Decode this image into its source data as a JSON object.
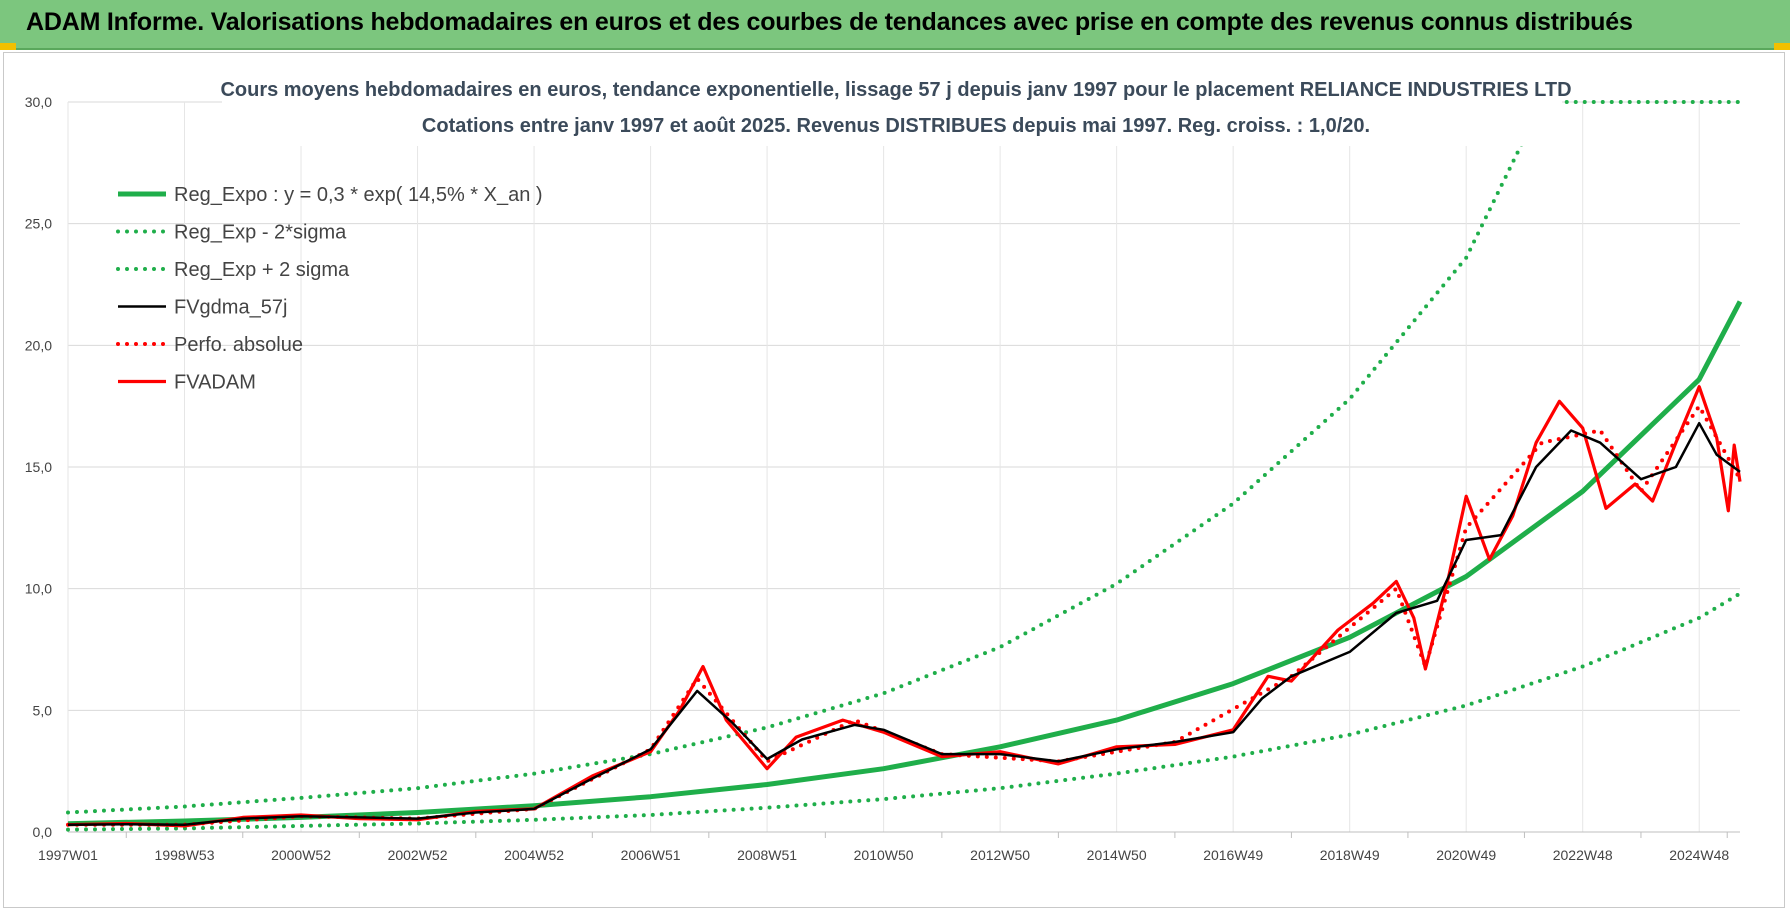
{
  "header": {
    "title": "ADAM Informe. Valorisations hebdomadaires en euros et des courbes de tendances avec prise en compte des revenus connus distribués"
  },
  "colors": {
    "banner": "#7cc67e",
    "trend": "#1fae4a",
    "price": "#ff0000",
    "smooth": "#000000",
    "grid": "#d9d9d9"
  },
  "chart_data": {
    "type": "line",
    "title_line1": "Cours moyens hebdomadaires en euros, tendance exponentielle, lissage 57 j depuis janv 1997 pour le placement RELIANCE INDUSTRIES LTD",
    "title_line2": "Cotations entre janv 1997 et août 2025. Revenus DISTRIBUES depuis mai 1997. Reg. croiss. : 1,0/20.",
    "ylim": [
      0,
      30
    ],
    "xlim": [
      1997.0,
      2025.7
    ],
    "grid": "horizontal",
    "legend_position": "top-left",
    "y_ticks": [
      "0,0",
      "5,0",
      "10,0",
      "15,0",
      "20,0",
      "25,0",
      "30,0"
    ],
    "x_ticks": [
      {
        "label": "1997W01",
        "x": 1997.0
      },
      {
        "label": "1998W53",
        "x": 1999.0
      },
      {
        "label": "2000W52",
        "x": 2001.0
      },
      {
        "label": "2002W52",
        "x": 2003.0
      },
      {
        "label": "2004W52",
        "x": 2005.0
      },
      {
        "label": "2006W51",
        "x": 2007.0
      },
      {
        "label": "2008W51",
        "x": 2009.0
      },
      {
        "label": "2010W50",
        "x": 2011.0
      },
      {
        "label": "2012W50",
        "x": 2013.0
      },
      {
        "label": "2014W50",
        "x": 2015.0
      },
      {
        "label": "2016W49",
        "x": 2017.0
      },
      {
        "label": "2018W49",
        "x": 2019.0
      },
      {
        "label": "2020W49",
        "x": 2021.0
      },
      {
        "label": "2022W48",
        "x": 2023.0
      },
      {
        "label": "2024W48",
        "x": 2025.0
      }
    ],
    "series": [
      {
        "name": "Reg_Expo : y = 0,3 * exp( 14,5% *  X_an )",
        "style": "solid-thick",
        "color": "#1fae4a",
        "points": [
          [
            1997,
            0.34
          ],
          [
            1999,
            0.45
          ],
          [
            2001,
            0.6
          ],
          [
            2003,
            0.8
          ],
          [
            2005,
            1.08
          ],
          [
            2007,
            1.45
          ],
          [
            2009,
            1.95
          ],
          [
            2011,
            2.6
          ],
          [
            2013,
            3.5
          ],
          [
            2015,
            4.6
          ],
          [
            2017,
            6.1
          ],
          [
            2019,
            8.0
          ],
          [
            2021,
            10.5
          ],
          [
            2023,
            14.0
          ],
          [
            2025,
            18.6
          ],
          [
            2025.7,
            21.8
          ]
        ]
      },
      {
        "name": "Reg_Exp - 2*sigma",
        "style": "dotted",
        "color": "#1fae4a",
        "points": [
          [
            1997,
            0.1
          ],
          [
            1999,
            0.15
          ],
          [
            2001,
            0.25
          ],
          [
            2003,
            0.35
          ],
          [
            2005,
            0.5
          ],
          [
            2007,
            0.7
          ],
          [
            2009,
            1.0
          ],
          [
            2011,
            1.35
          ],
          [
            2013,
            1.8
          ],
          [
            2015,
            2.4
          ],
          [
            2017,
            3.1
          ],
          [
            2019,
            4.0
          ],
          [
            2021,
            5.2
          ],
          [
            2023,
            6.8
          ],
          [
            2025,
            8.8
          ],
          [
            2025.7,
            9.8
          ]
        ]
      },
      {
        "name": "Reg_Exp + 2 sigma",
        "style": "dotted",
        "color": "#1fae4a",
        "points": [
          [
            1997,
            0.8
          ],
          [
            1999,
            1.05
          ],
          [
            2001,
            1.4
          ],
          [
            2003,
            1.8
          ],
          [
            2005,
            2.4
          ],
          [
            2007,
            3.2
          ],
          [
            2009,
            4.3
          ],
          [
            2011,
            5.7
          ],
          [
            2013,
            7.6
          ],
          [
            2015,
            10.2
          ],
          [
            2017,
            13.5
          ],
          [
            2019,
            17.8
          ],
          [
            2021,
            23.6
          ],
          [
            2022.0,
            28.5
          ],
          [
            2022.3,
            30.0
          ],
          [
            2025.7,
            30.0
          ]
        ]
      },
      {
        "name": "FVgdma_57j",
        "style": "solid",
        "color": "#000000",
        "points": [
          [
            1997,
            0.3
          ],
          [
            1998,
            0.32
          ],
          [
            1999,
            0.3
          ],
          [
            2000,
            0.55
          ],
          [
            2001,
            0.65
          ],
          [
            2002,
            0.6
          ],
          [
            2003,
            0.55
          ],
          [
            2004,
            0.8
          ],
          [
            2005,
            0.95
          ],
          [
            2006,
            2.2
          ],
          [
            2007,
            3.4
          ],
          [
            2007.8,
            5.8
          ],
          [
            2008.4,
            4.5
          ],
          [
            2009,
            3.0
          ],
          [
            2009.6,
            3.8
          ],
          [
            2010.5,
            4.4
          ],
          [
            2011,
            4.2
          ],
          [
            2012,
            3.2
          ],
          [
            2013,
            3.2
          ],
          [
            2014,
            2.9
          ],
          [
            2015,
            3.4
          ],
          [
            2016,
            3.7
          ],
          [
            2017,
            4.1
          ],
          [
            2017.5,
            5.5
          ],
          [
            2018,
            6.4
          ],
          [
            2019,
            7.4
          ],
          [
            2019.8,
            9.0
          ],
          [
            2020.5,
            9.5
          ],
          [
            2021,
            12.0
          ],
          [
            2021.6,
            12.2
          ],
          [
            2022.2,
            15.0
          ],
          [
            2022.8,
            16.5
          ],
          [
            2023.3,
            16.0
          ],
          [
            2024,
            14.5
          ],
          [
            2024.6,
            15.0
          ],
          [
            2025,
            16.8
          ],
          [
            2025.3,
            15.5
          ],
          [
            2025.7,
            14.8
          ]
        ]
      },
      {
        "name": "Perfo. absolue",
        "style": "dotted",
        "color": "#ff0000",
        "points": [
          [
            1997,
            0.3
          ],
          [
            1999,
            0.3
          ],
          [
            2001,
            0.65
          ],
          [
            2003,
            0.55
          ],
          [
            2005,
            0.95
          ],
          [
            2007,
            3.4
          ],
          [
            2007.8,
            6.3
          ],
          [
            2009,
            2.9
          ],
          [
            2010.5,
            4.6
          ],
          [
            2012,
            3.2
          ],
          [
            2014,
            2.9
          ],
          [
            2016,
            3.7
          ],
          [
            2018,
            6.4
          ],
          [
            2019.8,
            10.0
          ],
          [
            2020.3,
            6.8
          ],
          [
            2021,
            12.5
          ],
          [
            2022.3,
            16.0
          ],
          [
            2023.3,
            16.5
          ],
          [
            2024,
            14.0
          ],
          [
            2025,
            17.5
          ],
          [
            2025.7,
            14.5
          ]
        ]
      },
      {
        "name": "FVADAM",
        "style": "solid-thick",
        "color": "#ff0000",
        "points": [
          [
            1997,
            0.3
          ],
          [
            1998,
            0.35
          ],
          [
            1999,
            0.25
          ],
          [
            2000,
            0.6
          ],
          [
            2001,
            0.7
          ],
          [
            2002,
            0.55
          ],
          [
            2003,
            0.5
          ],
          [
            2004,
            0.85
          ],
          [
            2005,
            0.95
          ],
          [
            2006,
            2.3
          ],
          [
            2007,
            3.3
          ],
          [
            2007.5,
            5.0
          ],
          [
            2007.9,
            6.8
          ],
          [
            2008.3,
            4.6
          ],
          [
            2009,
            2.6
          ],
          [
            2009.5,
            3.9
          ],
          [
            2010.3,
            4.6
          ],
          [
            2011,
            4.1
          ],
          [
            2012,
            3.1
          ],
          [
            2013,
            3.3
          ],
          [
            2014,
            2.8
          ],
          [
            2015,
            3.5
          ],
          [
            2016,
            3.6
          ],
          [
            2017,
            4.2
          ],
          [
            2017.6,
            6.4
          ],
          [
            2018,
            6.2
          ],
          [
            2018.8,
            8.3
          ],
          [
            2019.4,
            9.4
          ],
          [
            2019.8,
            10.3
          ],
          [
            2020.1,
            8.8
          ],
          [
            2020.3,
            6.7
          ],
          [
            2020.7,
            10.5
          ],
          [
            2021,
            13.8
          ],
          [
            2021.4,
            11.2
          ],
          [
            2021.8,
            13.0
          ],
          [
            2022.2,
            16.0
          ],
          [
            2022.6,
            17.7
          ],
          [
            2023,
            16.6
          ],
          [
            2023.4,
            13.3
          ],
          [
            2023.9,
            14.3
          ],
          [
            2024.2,
            13.6
          ],
          [
            2024.6,
            16.0
          ],
          [
            2025.0,
            18.3
          ],
          [
            2025.3,
            16.2
          ],
          [
            2025.5,
            13.2
          ],
          [
            2025.6,
            15.9
          ],
          [
            2025.7,
            14.4
          ]
        ]
      }
    ]
  }
}
